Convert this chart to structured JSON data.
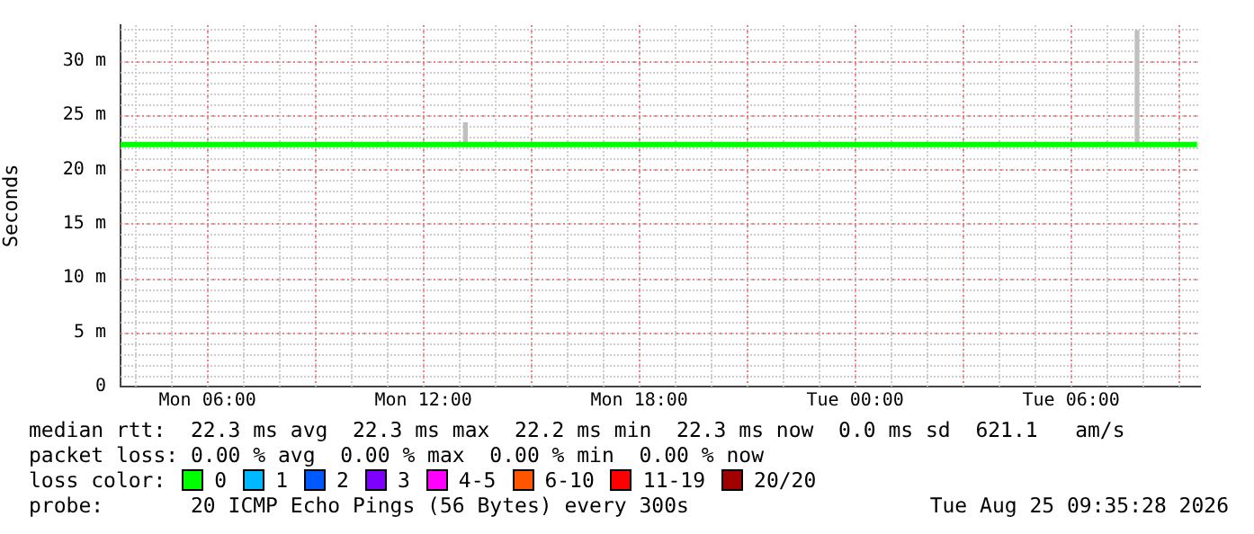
{
  "chart_data": {
    "type": "line",
    "ylabel": "Seconds",
    "legend_title": "loss color:",
    "legend": "bottom",
    "grid": true,
    "xlim": [
      "2026-08-24T03:35",
      "2026-08-25T09:35"
    ],
    "xticks": [
      {
        "value": "2026-08-24T06:00",
        "label": "Mon 06:00"
      },
      {
        "value": "2026-08-24T09:00",
        "label": null
      },
      {
        "value": "2026-08-24T12:00",
        "label": "Mon 12:00"
      },
      {
        "value": "2026-08-24T15:00",
        "label": null
      },
      {
        "value": "2026-08-24T18:00",
        "label": "Mon 18:00"
      },
      {
        "value": "2026-08-24T21:00",
        "label": null
      },
      {
        "value": "2026-08-25T00:00",
        "label": "Tue 00:00"
      },
      {
        "value": "2026-08-25T03:00",
        "label": null
      },
      {
        "value": "2026-08-25T06:00",
        "label": "Tue 06:00"
      },
      {
        "value": "2026-08-25T09:00",
        "label": null
      }
    ],
    "ylim": [
      0,
      33.3
    ],
    "yticks": [
      0,
      {
        "value": 5,
        "label": "5 m"
      },
      {
        "value": 10,
        "label": "10 m"
      },
      {
        "value": 15,
        "label": "15 m"
      },
      {
        "value": 20,
        "label": "20 m"
      },
      {
        "value": 25,
        "label": "25 m"
      },
      {
        "value": 30,
        "label": "30 m"
      }
    ],
    "series": [
      {
        "name": "0",
        "color": "#00ff00",
        "x": [
          "2026-08-24T03:35",
          "2026-08-24T06:00",
          "2026-08-24T09:00",
          "2026-08-24T12:00",
          "2026-08-24T15:00",
          "2026-08-24T18:00",
          "2026-08-24T21:00",
          "2026-08-25T00:00",
          "2026-08-25T03:00",
          "2026-08-25T06:00",
          "2026-08-25T09:30"
        ],
        "values": [
          22.3,
          22.3,
          22.3,
          22.3,
          22.3,
          22.3,
          22.3,
          22.3,
          22.3,
          22.3,
          22.3
        ]
      },
      {
        "color": "#c0c0c0",
        "type": "bar",
        "x": [
          "2026-08-24T13:10",
          "2026-08-25T07:50"
        ],
        "base": [
          22.3,
          22.3
        ],
        "values": [
          2.0,
          10.5
        ]
      },
      {
        "name": "1",
        "color": "#00b8ff",
        "type": "line"
      },
      {
        "name": "2",
        "color": "#0059ff",
        "type": "line"
      },
      {
        "name": "3",
        "color": "#7e00ff",
        "type": "line"
      },
      {
        "name": "4-5",
        "color": "#ff00ff",
        "type": "line"
      },
      {
        "name": "6-10",
        "color": "#ff5500",
        "type": "line"
      },
      {
        "name": "11-19",
        "color": "#ff0000",
        "type": "line"
      },
      {
        "name": "20/20",
        "color": "#a10000",
        "type": "line"
      }
    ],
    "annotations": [
      "median rtt:  22.3 ms avg  22.3 ms max  22.2 ms min  22.3 ms now  0.0 ms sd  621.1   am/s",
      "packet loss: 0.00 % avg  0.00 % max  0.00 % min  0.00 % now",
      "probe:       20 ICMP Echo Pings (56 Bytes) every 300s",
      "Tue Aug 25 09:35:28 2026"
    ]
  }
}
